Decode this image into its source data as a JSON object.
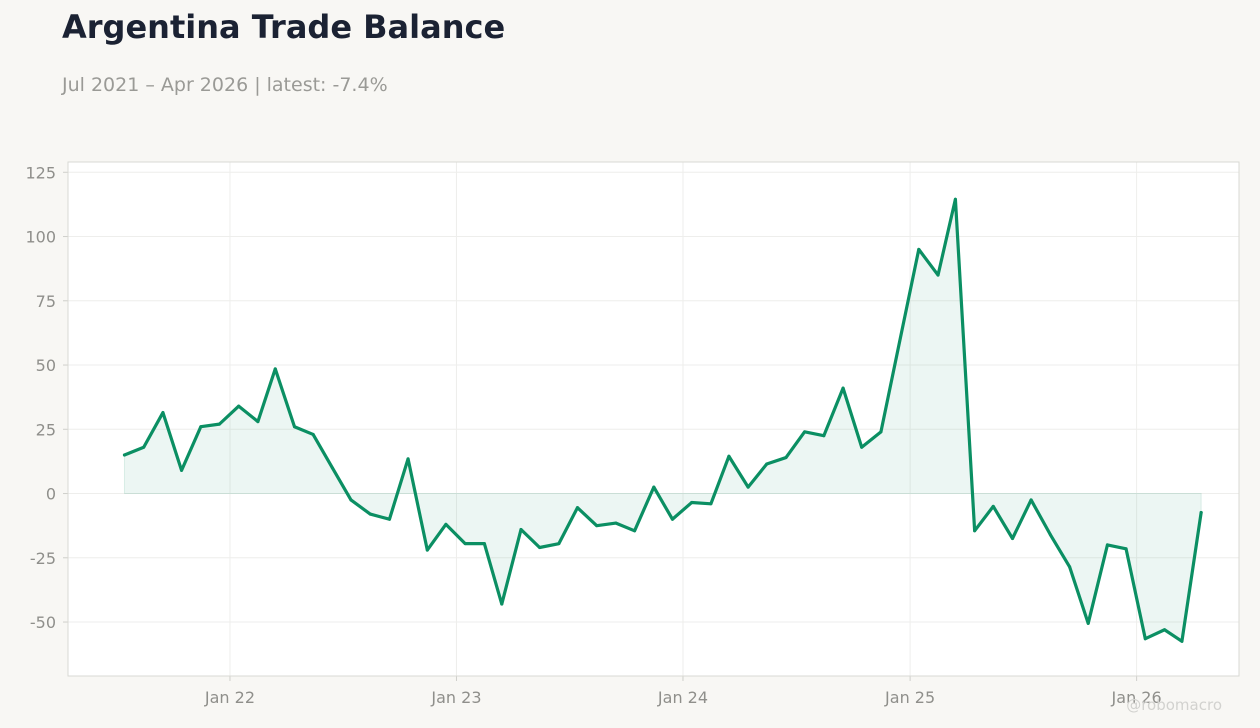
{
  "header": {
    "title": "Argentina Trade Balance",
    "subtitle": "Jul 2021 – Apr 2026 | latest: -7.4%"
  },
  "watermark": "@robomacro",
  "colors": {
    "line": "#0b8f63",
    "fill": "#0b8f63",
    "background": "#f8f7f4",
    "plot_background": "#ffffff",
    "grid": "#eeeeec"
  },
  "chart_data": {
    "type": "area",
    "title": "Argentina Trade Balance",
    "subtitle": "Jul 2021 – Apr 2026 | latest: -7.4%",
    "xlabel": "",
    "ylabel": "",
    "ylim": [
      -71,
      129
    ],
    "xlim": [
      "2021-04-15",
      "2026-06-15"
    ],
    "grid": true,
    "legend": "none",
    "y_ticks": [
      125,
      100,
      75,
      50,
      25,
      0,
      -25,
      -50
    ],
    "x_ticks": [
      {
        "label": "Jan 22",
        "date": "2022-01-01"
      },
      {
        "label": "Jan 23",
        "date": "2023-01-01"
      },
      {
        "label": "Jan 24",
        "date": "2024-01-01"
      },
      {
        "label": "Jan 25",
        "date": "2025-01-01"
      },
      {
        "label": "Jan 26",
        "date": "2026-01-01"
      }
    ],
    "series": [
      {
        "x": [
          "2021-07",
          "2021-08",
          "2021-09",
          "2021-10",
          "2021-11",
          "2021-12",
          "2022-01",
          "2022-02",
          "2022-03",
          "2022-04",
          "2022-05",
          "2022-06",
          "2022-07",
          "2022-08",
          "2022-09",
          "2022-10",
          "2022-11",
          "2022-12",
          "2023-01",
          "2023-02",
          "2023-03",
          "2023-04",
          "2023-05",
          "2023-06",
          "2023-07",
          "2023-08",
          "2023-09",
          "2023-10",
          "2023-11",
          "2023-12",
          "2024-01",
          "2024-02",
          "2024-03",
          "2024-04",
          "2024-05",
          "2024-06",
          "2024-07",
          "2024-08",
          "2024-09",
          "2024-10",
          "2024-11",
          "2024-12",
          "2025-01",
          "2025-02",
          "2025-03",
          "2025-04",
          "2025-05",
          "2025-06",
          "2025-07",
          "2025-08",
          "2025-09",
          "2025-10",
          "2025-11",
          "2025-12",
          "2026-01",
          "2026-02",
          "2026-03",
          "2026-04"
        ],
        "values": [
          15,
          18,
          31.5,
          9,
          26,
          27,
          34,
          28,
          48.5,
          26,
          23,
          10,
          -2.5,
          -8,
          -10,
          13.5,
          -22,
          -12,
          -19.5,
          -19.5,
          -43,
          -14,
          -21,
          -19.5,
          -5.5,
          -12.5,
          -11.5,
          -14.5,
          2.5,
          -10,
          -3.5,
          -4,
          14.5,
          2.5,
          11.5,
          14,
          24,
          22.5,
          41,
          18,
          24,
          59,
          95,
          85,
          114.5,
          -14.5,
          -5,
          -17.5,
          -2.5,
          -16,
          -28.5,
          -50.5,
          -20,
          -21.5,
          -56.5,
          -53,
          -57.5,
          -7.4
        ]
      }
    ]
  }
}
